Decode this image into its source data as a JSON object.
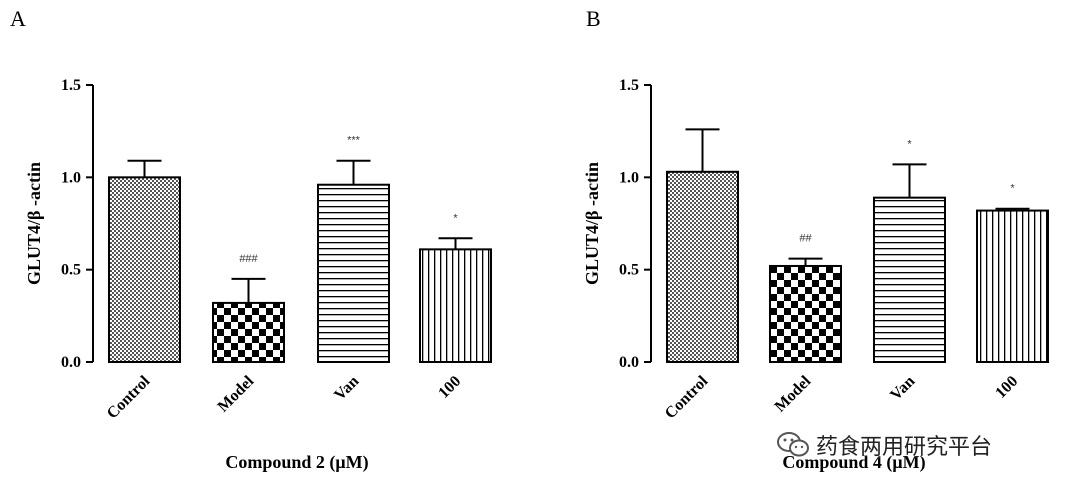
{
  "chart_data": [
    {
      "type": "bar",
      "panel": "A",
      "categories": [
        "Control",
        "Model",
        "Van",
        "100"
      ],
      "values": [
        1.0,
        0.32,
        0.96,
        0.61
      ],
      "errors": [
        0.09,
        0.13,
        0.13,
        0.06
      ],
      "significance": [
        "",
        "###",
        "***",
        "*"
      ],
      "patterns": [
        "crosshatch",
        "checker",
        "hlines",
        "vlines"
      ],
      "xlabel": "Compound 2 (μM)",
      "ylabel": "GLUT4/β -actin",
      "ylim": [
        0,
        1.5
      ],
      "yticks": [
        "0.0",
        "0.5",
        "1.0",
        "1.5"
      ],
      "grid": false
    },
    {
      "type": "bar",
      "panel": "B",
      "categories": [
        "Control",
        "Model",
        "Van",
        "100"
      ],
      "values": [
        1.03,
        0.52,
        0.89,
        0.82
      ],
      "errors": [
        0.23,
        0.04,
        0.18,
        0.01
      ],
      "significance": [
        "",
        "##",
        "*",
        "*"
      ],
      "patterns": [
        "crosshatch",
        "checker",
        "hlines",
        "vlines"
      ],
      "xlabel": "Compound 4 (μM)",
      "ylabel": "GLUT4/β -actin",
      "ylim": [
        0,
        1.5
      ],
      "yticks": [
        "0.0",
        "0.5",
        "1.0",
        "1.5"
      ],
      "grid": false
    }
  ],
  "watermark": {
    "text": "药食两用研究平台",
    "icon": "wechat-icon"
  }
}
